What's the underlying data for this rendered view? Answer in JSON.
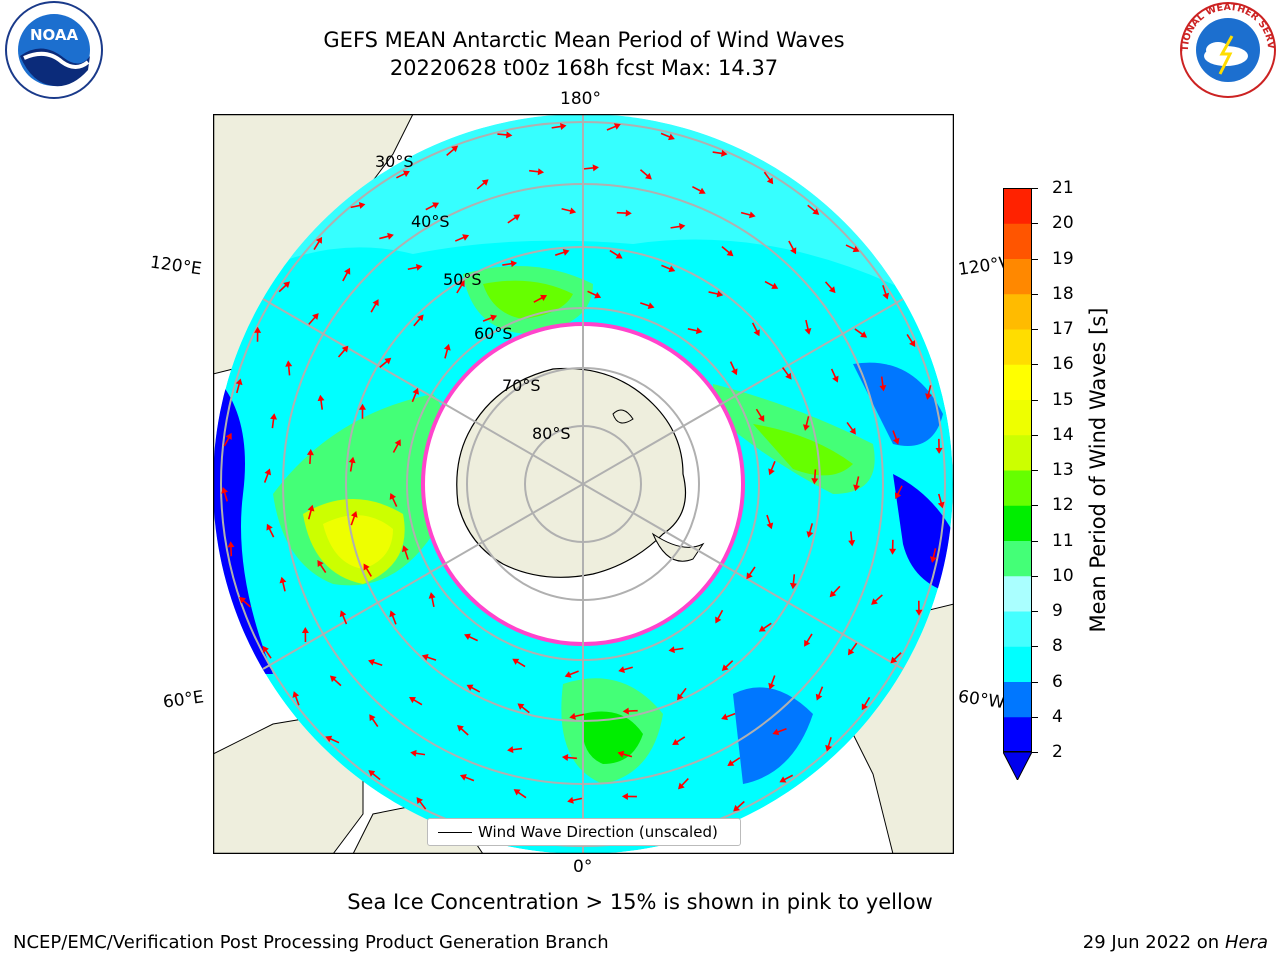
{
  "title": {
    "line1": "GEFS MEAN Antarctic Mean Period of Wind Waves",
    "line2": "20220628 t00z 168h fcst   Max: 14.37"
  },
  "map": {
    "projection": "south-polar-stereographic",
    "longitude_labels": {
      "top": "180°",
      "bottom": "0°",
      "upper_left": "120°E",
      "upper_right": "120°W",
      "lower_left": "60°E",
      "lower_right": "60°W"
    },
    "latitude_labels": [
      "30°S",
      "40°S",
      "50°S",
      "60°S",
      "70°S",
      "80°S"
    ],
    "legend_text": "Wind Wave Direction (unscaled)",
    "colors": {
      "land": "#eeeedd",
      "ocean_outside": "#ffffff",
      "graticule": "#b0b0b0",
      "arrows": "#ff0000",
      "sea_ice_edge": "#ff44cc"
    }
  },
  "colorbar": {
    "label": "Mean Period of Wind Waves [s]",
    "ticks": [
      "2",
      "4",
      "6",
      "8",
      "9",
      "10",
      "11",
      "12",
      "13",
      "14",
      "15",
      "16",
      "17",
      "18",
      "19",
      "20",
      "21"
    ],
    "colors": [
      "#0000ff",
      "#0077ff",
      "#00ffff",
      "#44ffff",
      "#aaffff",
      "#44ff77",
      "#00ee00",
      "#66ff00",
      "#ccff00",
      "#eeff00",
      "#ffff00",
      "#ffdd00",
      "#ffbb00",
      "#ff8800",
      "#ff5500",
      "#ff2200",
      "#ff0000"
    ],
    "extend_color": "#0000ee"
  },
  "caption": "Sea Ice Concentration > 15% is shown in pink to yellow",
  "footer": {
    "left": "NCEP/EMC/Verification Post Processing Product Generation Branch",
    "right_date": "29 Jun 2022 on",
    "right_host": "Hera"
  },
  "logos": {
    "noaa": "NOAA",
    "nws": "NATIONAL WEATHER SERVICE"
  }
}
